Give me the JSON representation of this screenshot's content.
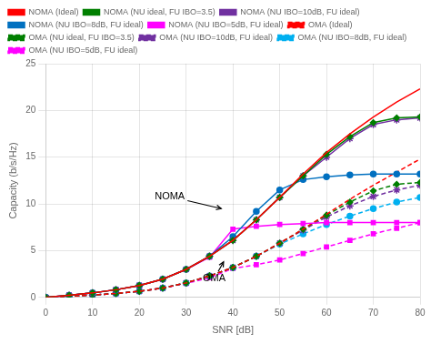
{
  "chart_data": {
    "type": "line",
    "xlabel": "SNR [dB]",
    "ylabel": "Capacity (b/s/Hz)",
    "x": [
      0,
      5,
      10,
      15,
      20,
      25,
      30,
      35,
      40,
      45,
      50,
      55,
      60,
      65,
      70,
      75,
      80
    ],
    "xlim": [
      0,
      80
    ],
    "ylim": [
      0,
      25
    ],
    "xticks": [
      0,
      10,
      20,
      30,
      40,
      50,
      60,
      70,
      80
    ],
    "yticks": [
      0,
      5,
      10,
      15,
      20,
      25
    ],
    "grid": true,
    "legend": "top",
    "series": [
      {
        "name": "NOMA (Ideal)",
        "color": "#ff0000",
        "line_style": "solid",
        "values": [
          0.0,
          0.23,
          0.48,
          0.82,
          1.28,
          1.95,
          3.0,
          4.4,
          6.1,
          8.3,
          10.7,
          13.2,
          15.5,
          17.5,
          19.3,
          20.9,
          22.3
        ]
      },
      {
        "name": "NOMA (NU ideal, FU IBO=3.5)",
        "color": "#007f00",
        "line_style": "solid",
        "marker": "diamond",
        "values": [
          0.0,
          0.23,
          0.48,
          0.82,
          1.28,
          1.95,
          3.0,
          4.4,
          6.1,
          8.3,
          10.7,
          13.0,
          15.3,
          17.2,
          18.7,
          19.2,
          19.3
        ]
      },
      {
        "name": "NOMA (NU IBO=10dB, FU ideal)",
        "color": "#7030a0",
        "line_style": "solid",
        "marker": "star",
        "values": [
          0.0,
          0.23,
          0.48,
          0.82,
          1.28,
          1.95,
          3.0,
          4.4,
          6.1,
          8.3,
          10.7,
          13.0,
          15.0,
          17.0,
          18.5,
          19.0,
          19.2
        ]
      },
      {
        "name": "NOMA (NU IBO=8dB, FU ideal)",
        "color": "#0070c0",
        "line_style": "solid",
        "marker": "circle",
        "values": [
          0.0,
          0.23,
          0.48,
          0.82,
          1.28,
          1.95,
          3.0,
          4.4,
          6.5,
          9.2,
          11.5,
          12.6,
          12.9,
          13.1,
          13.2,
          13.2,
          13.2
        ]
      },
      {
        "name": "NOMA (NU IBO=5dB, FU ideal)",
        "color": "#ff00ff",
        "line_style": "solid",
        "marker": "square",
        "values": [
          0.0,
          0.23,
          0.48,
          0.82,
          1.28,
          1.95,
          3.0,
          4.3,
          7.3,
          7.6,
          7.8,
          7.9,
          8.0,
          8.0,
          8.0,
          8.0,
          8.0
        ]
      },
      {
        "name": "OMA (Ideal)",
        "color": "#ff0000",
        "line_style": "dashed",
        "values": [
          0.0,
          0.12,
          0.25,
          0.42,
          0.65,
          1.0,
          1.55,
          2.3,
          3.2,
          4.4,
          5.8,
          7.3,
          8.9,
          10.5,
          12.0,
          13.4,
          14.8
        ]
      },
      {
        "name": "OMA (NU ideal, FU IBO=3.5)",
        "color": "#007f00",
        "line_style": "dashed",
        "marker": "diamond",
        "values": [
          0.0,
          0.12,
          0.25,
          0.42,
          0.65,
          1.0,
          1.55,
          2.3,
          3.2,
          4.4,
          5.8,
          7.3,
          8.8,
          10.2,
          11.4,
          12.1,
          12.3
        ]
      },
      {
        "name": "OMA (NU IBO=10dB, FU ideal)",
        "color": "#7030a0",
        "line_style": "dashed",
        "marker": "star",
        "values": [
          0.0,
          0.12,
          0.25,
          0.42,
          0.65,
          1.0,
          1.55,
          2.3,
          3.2,
          4.4,
          5.8,
          7.2,
          8.6,
          9.8,
          10.8,
          11.5,
          12.0
        ]
      },
      {
        "name": "OMA (NU IBO=8dB, FU ideal)",
        "color": "#00b0f0",
        "line_style": "dashed",
        "marker": "circle",
        "values": [
          0.0,
          0.12,
          0.25,
          0.42,
          0.65,
          1.0,
          1.55,
          2.3,
          3.2,
          4.4,
          5.7,
          6.8,
          7.8,
          8.7,
          9.5,
          10.2,
          10.7
        ]
      },
      {
        "name": "OMA (NU IBO=5dB, FU ideal)",
        "color": "#ff00ff",
        "line_style": "dashed",
        "marker": "square",
        "values": [
          0.0,
          0.12,
          0.25,
          0.42,
          0.65,
          1.0,
          1.5,
          2.1,
          3.1,
          3.5,
          4.0,
          4.7,
          5.4,
          6.1,
          6.8,
          7.4,
          8.0
        ]
      }
    ],
    "annotations": [
      {
        "text": "NOMA",
        "x": 37.5,
        "y": 9.5,
        "text_x": 26.5,
        "text_y": 10.8
      },
      {
        "text": "OMA",
        "x": 38,
        "y": 3.8,
        "text_x": 36,
        "text_y": 2.0
      }
    ]
  }
}
